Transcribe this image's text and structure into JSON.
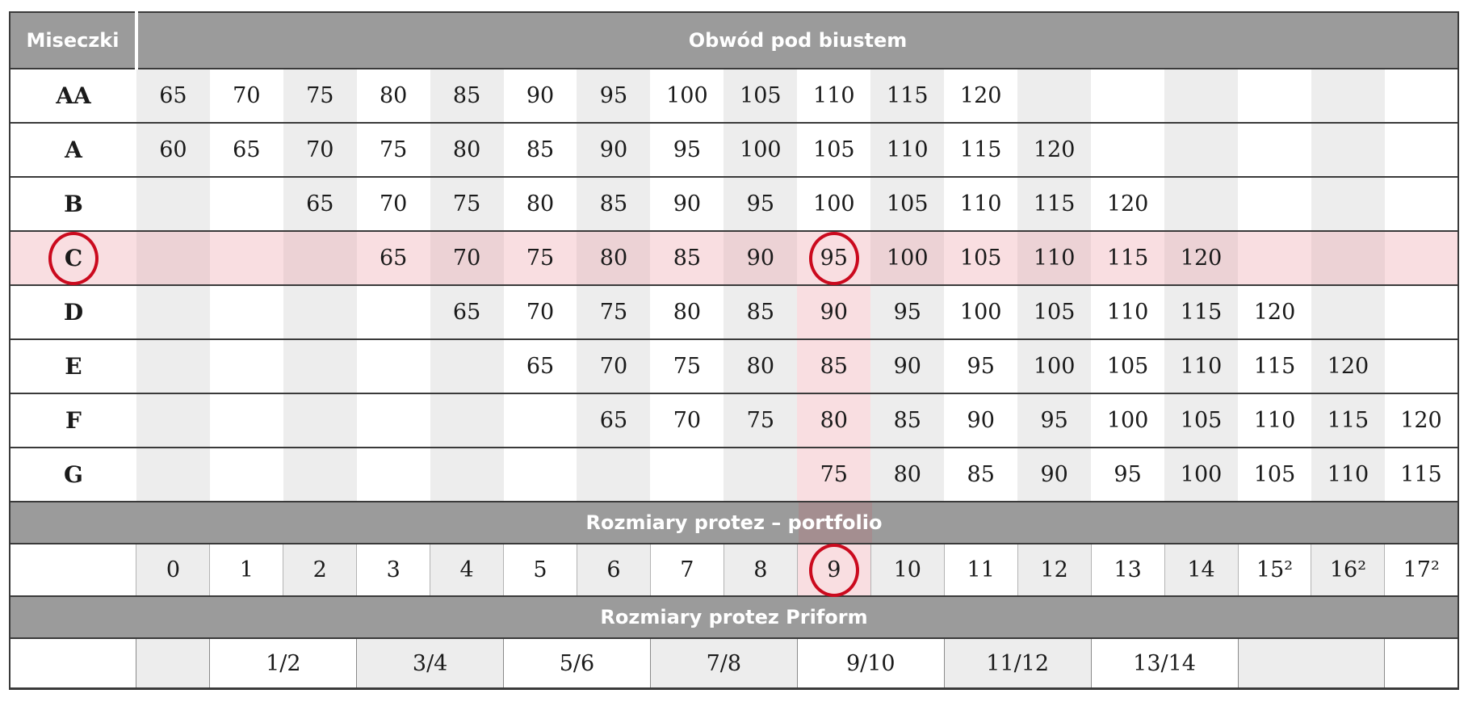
{
  "header": {
    "cups": "Miseczki",
    "underbust": "Obwód pod biustem"
  },
  "bands": {
    "portfolio": "Rozmiary protez – portfolio",
    "priform": "Rozmiary protez Priform"
  },
  "cup_rows": [
    {
      "label": "AA",
      "cells": [
        "65",
        "70",
        "75",
        "80",
        "85",
        "90",
        "95",
        "100",
        "105",
        "110",
        "115",
        "120",
        "",
        "",
        "",
        "",
        "",
        ""
      ]
    },
    {
      "label": "A",
      "cells": [
        "60",
        "65",
        "70",
        "75",
        "80",
        "85",
        "90",
        "95",
        "100",
        "105",
        "110",
        "115",
        "120",
        "",
        "",
        "",
        "",
        ""
      ]
    },
    {
      "label": "B",
      "cells": [
        "",
        "",
        "65",
        "70",
        "75",
        "80",
        "85",
        "90",
        "95",
        "100",
        "105",
        "110",
        "115",
        "120",
        "",
        "",
        "",
        ""
      ]
    },
    {
      "label": "C",
      "cells": [
        "",
        "",
        "",
        "65",
        "70",
        "75",
        "80",
        "85",
        "90",
        "95",
        "100",
        "105",
        "110",
        "115",
        "120",
        "",
        "",
        ""
      ]
    },
    {
      "label": "D",
      "cells": [
        "",
        "",
        "",
        "",
        "65",
        "70",
        "75",
        "80",
        "85",
        "90",
        "95",
        "100",
        "105",
        "110",
        "115",
        "120",
        "",
        ""
      ]
    },
    {
      "label": "E",
      "cells": [
        "",
        "",
        "",
        "",
        "",
        "65",
        "70",
        "75",
        "80",
        "85",
        "90",
        "95",
        "100",
        "105",
        "110",
        "115",
        "120",
        ""
      ]
    },
    {
      "label": "F",
      "cells": [
        "",
        "",
        "",
        "",
        "",
        "",
        "65",
        "70",
        "75",
        "80",
        "85",
        "90",
        "95",
        "100",
        "105",
        "110",
        "115",
        "120"
      ]
    },
    {
      "label": "G",
      "cells": [
        "",
        "",
        "",
        "",
        "",
        "",
        "",
        "",
        "",
        "75",
        "80",
        "85",
        "90",
        "95",
        "100",
        "105",
        "110",
        "115"
      ]
    }
  ],
  "size_row": {
    "cells": [
      "0",
      "1",
      "2",
      "3",
      "4",
      "5",
      "6",
      "7",
      "8",
      "9",
      "10",
      "11",
      "12",
      "13",
      "14",
      "15²",
      "16²",
      "17²"
    ]
  },
  "priform_row": {
    "segments": [
      {
        "text": ""
      },
      {
        "text": "1/2"
      },
      {
        "text": "3/4"
      },
      {
        "text": "5/6"
      },
      {
        "text": "7/8"
      },
      {
        "text": "9/10"
      },
      {
        "text": "11/12"
      },
      {
        "text": "13/14"
      },
      {
        "text": ""
      },
      {
        "text": ""
      }
    ]
  },
  "highlight": {
    "cup": "C",
    "underbust": "95",
    "portfolio_size": "9",
    "column_index": 10
  },
  "colors": {
    "band_gray": "#9b9b9b",
    "stripe_gray": "#ededed",
    "row_pink_light": "#f9dee1",
    "row_pink_dark": "#ecd2d5",
    "circle_red": "#cb0a1e",
    "border_dark": "#3a3a3a"
  }
}
